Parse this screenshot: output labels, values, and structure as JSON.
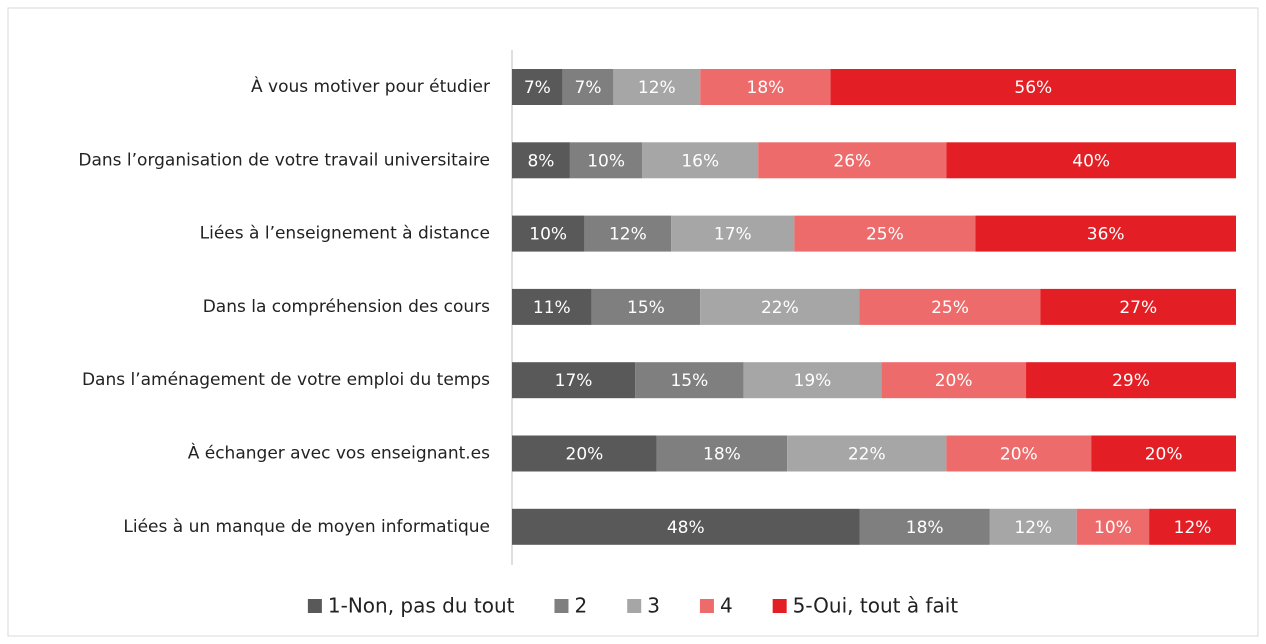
{
  "chart_data": {
    "type": "stacked_bar_horizontal",
    "categories": [
      "À vous motiver pour étudier",
      "Dans l’organisation de votre travail universitaire",
      "Liées à l’enseignement à distance",
      "Dans la compréhension des cours",
      "Dans l’aménagement de votre emploi du temps",
      "À échanger avec vos enseignant.es",
      "Liées à un manque de moyen informatique"
    ],
    "series": [
      {
        "name": "1-Non, pas du tout",
        "color": "#595959",
        "values": [
          7,
          8,
          10,
          11,
          17,
          20,
          48
        ],
        "value_labels": [
          "7%",
          "8%",
          "10%",
          "11%",
          "17%",
          "20%",
          "48%"
        ]
      },
      {
        "name": "2",
        "color": "#7f7f7f",
        "values": [
          7,
          10,
          12,
          15,
          15,
          18,
          18
        ],
        "value_labels": [
          "7%",
          "10%",
          "12%",
          "15%",
          "15%",
          "18%",
          "18%"
        ]
      },
      {
        "name": "3",
        "color": "#a6a6a6",
        "values": [
          12,
          16,
          17,
          22,
          19,
          22,
          12
        ],
        "value_labels": [
          "12%",
          "16%",
          "17%",
          "22%",
          "19%",
          "22%",
          "12%"
        ]
      },
      {
        "name": "4",
        "color": "#ee6b6b",
        "values": [
          18,
          26,
          25,
          25,
          20,
          20,
          10
        ],
        "value_labels": [
          "18%",
          "26%",
          "25%",
          "25%",
          "20%",
          "20%",
          "10%"
        ]
      },
      {
        "name": "5-Oui, tout à fait",
        "color": "#e31e24",
        "values": [
          56,
          40,
          36,
          27,
          29,
          20,
          12
        ],
        "value_labels": [
          "56%",
          "40%",
          "36%",
          "27%",
          "29%",
          "20%",
          "12%"
        ]
      }
    ],
    "legend": "bottom"
  }
}
